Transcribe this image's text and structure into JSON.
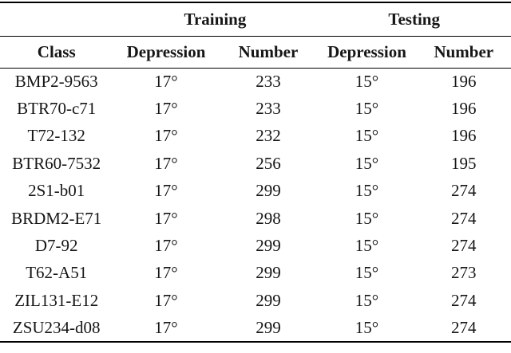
{
  "page": {
    "background": "#ffffff",
    "text_color": "#161616",
    "rule_color": "#000000"
  },
  "table": {
    "group_headers": {
      "training": "Training",
      "testing": "Testing"
    },
    "column_headers": [
      "Class",
      "Depression",
      "Number",
      "Depression",
      "Number"
    ],
    "rows": [
      {
        "class": "BMP2-9563",
        "train_depression": "17°",
        "train_number": "233",
        "test_depression": "15°",
        "test_number": "196"
      },
      {
        "class": "BTR70-c71",
        "train_depression": "17°",
        "train_number": "233",
        "test_depression": "15°",
        "test_number": "196"
      },
      {
        "class": "T72-132",
        "train_depression": "17°",
        "train_number": "232",
        "test_depression": "15°",
        "test_number": "196"
      },
      {
        "class": "BTR60-7532",
        "train_depression": "17°",
        "train_number": "256",
        "test_depression": "15°",
        "test_number": "195"
      },
      {
        "class": "2S1-b01",
        "train_depression": "17°",
        "train_number": "299",
        "test_depression": "15°",
        "test_number": "274"
      },
      {
        "class": "BRDM2-E71",
        "train_depression": "17°",
        "train_number": "298",
        "test_depression": "15°",
        "test_number": "274"
      },
      {
        "class": "D7-92",
        "train_depression": "17°",
        "train_number": "299",
        "test_depression": "15°",
        "test_number": "274"
      },
      {
        "class": "T62-A51",
        "train_depression": "17°",
        "train_number": "299",
        "test_depression": "15°",
        "test_number": "273"
      },
      {
        "class": "ZIL131-E12",
        "train_depression": "17°",
        "train_number": "299",
        "test_depression": "15°",
        "test_number": "274"
      },
      {
        "class": "ZSU234-d08",
        "train_depression": "17°",
        "train_number": "299",
        "test_depression": "15°",
        "test_number": "274"
      }
    ]
  }
}
